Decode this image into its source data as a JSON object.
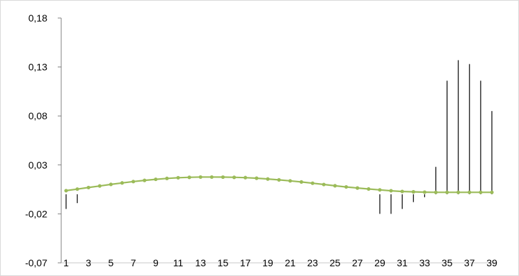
{
  "chart_data": {
    "type": "line",
    "title": "",
    "xlabel": "",
    "ylabel": "",
    "grid": false,
    "legend": "none",
    "ylim": [
      -0.07,
      0.18
    ],
    "y_ticks": [
      "0,18",
      "0,13",
      "0,08",
      "0,03",
      "-0,02",
      "-0,07"
    ],
    "y_tick_values": [
      0.18,
      0.13,
      0.08,
      0.03,
      -0.02,
      -0.07
    ],
    "x": [
      1,
      2,
      3,
      4,
      5,
      6,
      7,
      8,
      9,
      10,
      11,
      12,
      13,
      14,
      15,
      16,
      17,
      18,
      19,
      20,
      21,
      22,
      23,
      24,
      25,
      26,
      27,
      28,
      29,
      30,
      31,
      32,
      33,
      34,
      35,
      36,
      37,
      38,
      39
    ],
    "x_tick_labels": [
      "1",
      "3",
      "5",
      "7",
      "9",
      "11",
      "13",
      "15",
      "17",
      "19",
      "21",
      "23",
      "25",
      "27",
      "29",
      "31",
      "33",
      "35",
      "37",
      "39"
    ],
    "series": [
      {
        "color": "#9bbb59",
        "style": "line-with-markers",
        "values": [
          0.0037,
          0.0053,
          0.0069,
          0.0085,
          0.0101,
          0.0116,
          0.013,
          0.0142,
          0.0153,
          0.0162,
          0.0169,
          0.0173,
          0.0176,
          0.0176,
          0.0175,
          0.0173,
          0.017,
          0.0164,
          0.0156,
          0.0147,
          0.0137,
          0.0126,
          0.0113,
          0.01,
          0.0087,
          0.0075,
          0.0064,
          0.0054,
          0.0045,
          0.0036,
          0.0029,
          0.0025,
          0.0022,
          0.002,
          0.002,
          0.002,
          0.002,
          0.002,
          0.002
        ]
      },
      {
        "color": "#000000",
        "style": "vertical-bars",
        "values": [
          -0.015,
          -0.009,
          0,
          0,
          0,
          0,
          0,
          0,
          0,
          0,
          0,
          0,
          0,
          0,
          0,
          0,
          0,
          0,
          0,
          0,
          0,
          0,
          0,
          0,
          0,
          0,
          0,
          0,
          -0.02,
          -0.02,
          -0.015,
          -0.008,
          -0.003,
          0.028,
          0.116,
          0.137,
          0.133,
          0.116,
          0.085
        ]
      }
    ]
  }
}
